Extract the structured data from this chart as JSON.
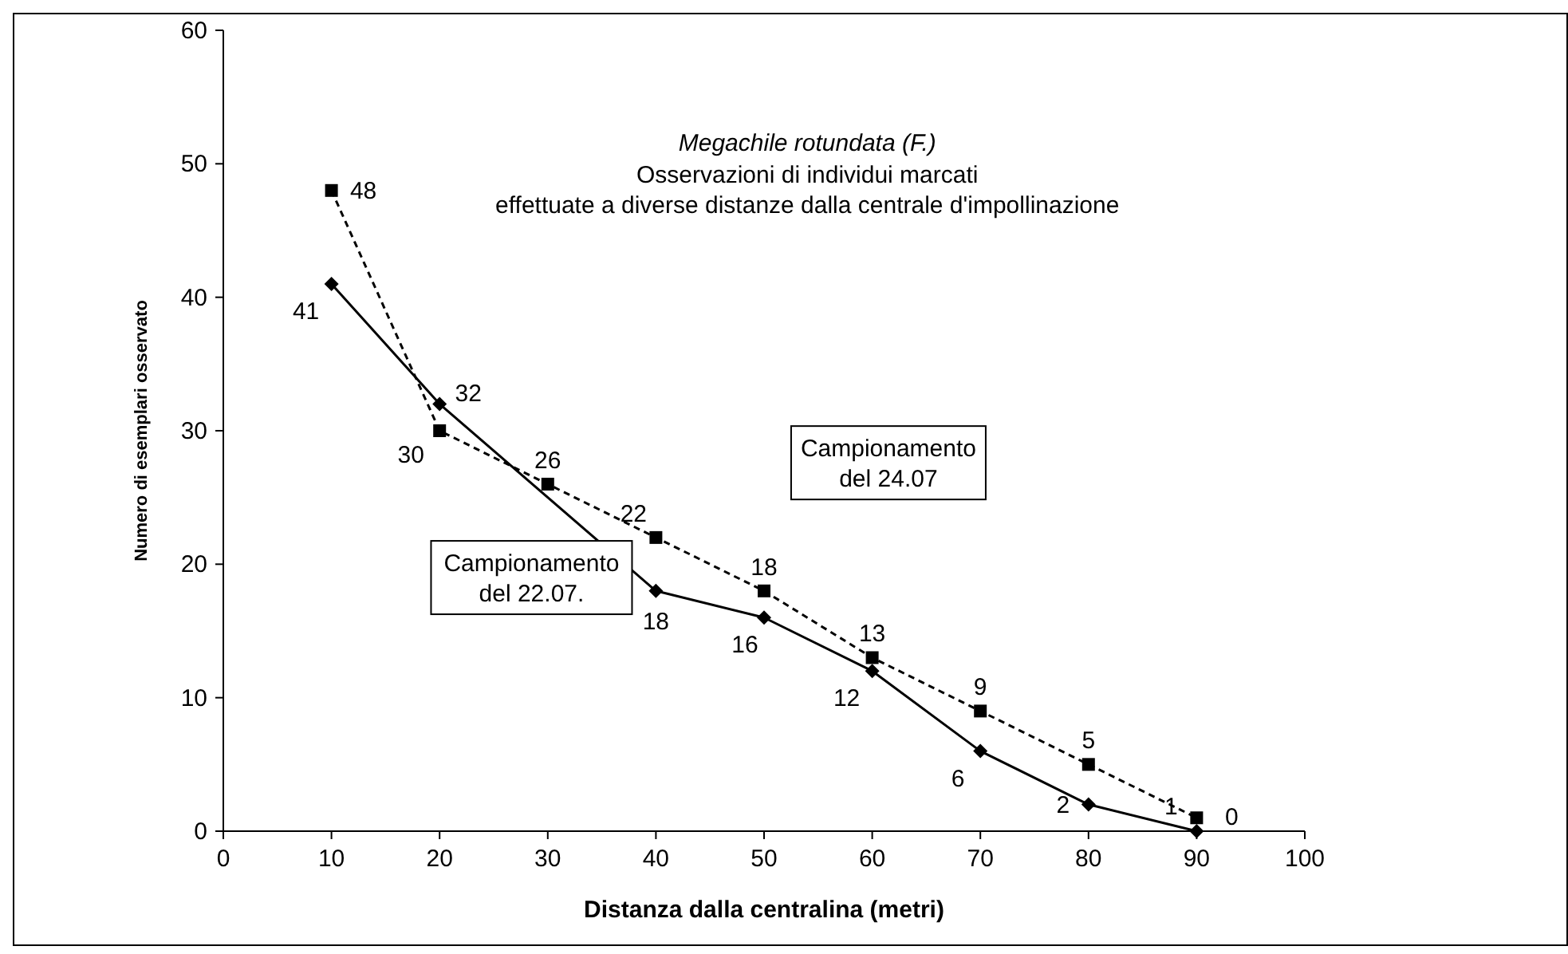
{
  "chart_data": {
    "type": "line",
    "title": "Megachile rotundata (F.)",
    "subtitle": "Osservazioni di individui marcati effettuate a diverse distanze dalla centrale d'impollinazione",
    "xlabel": "Distanza dalla centralina (metri)",
    "ylabel": "Numero di esemplari osservato",
    "x": [
      10,
      20,
      30,
      40,
      50,
      60,
      70,
      80,
      90
    ],
    "series": [
      {
        "name": "Campionamento del 22.07.",
        "color": "#000000",
        "values": [
          41,
          32,
          null,
          18,
          16,
          12,
          6,
          2,
          0
        ],
        "marker": "diamond",
        "line_style": "solid"
      },
      {
        "name": "Campionamento del 24.07",
        "color": "#000000",
        "values": [
          48,
          30,
          26,
          22,
          18,
          13,
          9,
          5,
          1
        ],
        "marker": "square",
        "line_style": "dashed"
      }
    ],
    "xlim": [
      0,
      100
    ],
    "xticks": [
      0,
      10,
      20,
      30,
      40,
      50,
      60,
      70,
      80,
      90,
      100
    ],
    "ylim": [
      0,
      60
    ],
    "yticks": [
      0,
      10,
      20,
      30,
      40,
      50,
      60
    ],
    "grid": false,
    "data_labels": true
  }
}
